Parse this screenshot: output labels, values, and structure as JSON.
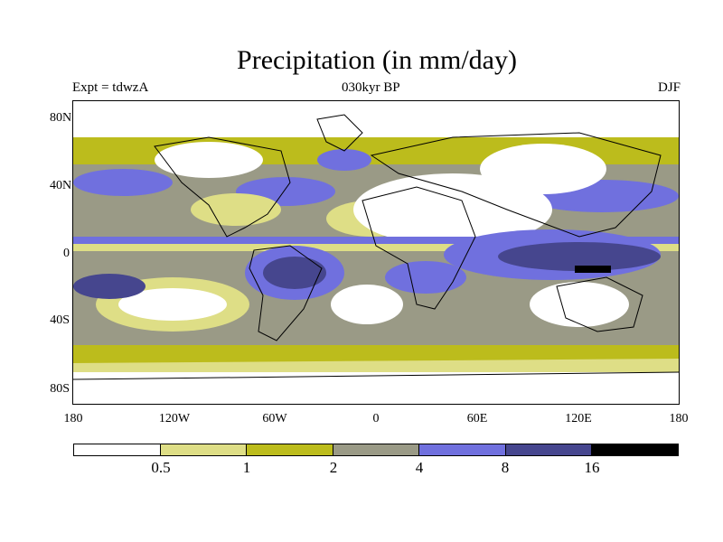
{
  "title": "Precipitation (in mm/day)",
  "subtitle_left": "Expt = tdwzA",
  "subtitle_center": "030kyr BP",
  "subtitle_right": "DJF",
  "y_ticks": [
    "80N",
    "40N",
    "0",
    "40S",
    "80S"
  ],
  "x_ticks": [
    "180",
    "120W",
    "60W",
    "0",
    "60E",
    "120E",
    "180"
  ],
  "colorbar": {
    "labels": [
      "0.5",
      "1",
      "2",
      "4",
      "8",
      "16"
    ],
    "colors": [
      "#ffffff",
      "#dede86",
      "#bcbc1c",
      "#9a9a86",
      "#7070de",
      "#46468e",
      "#000000"
    ]
  },
  "map_colors": {
    "dry": "#ffffff",
    "low": "#dede86",
    "mid": "#bcbc1c",
    "gray": "#9a9a86",
    "blue": "#7070de",
    "navy": "#46468e",
    "black": "#000000",
    "coast": "#000000"
  }
}
